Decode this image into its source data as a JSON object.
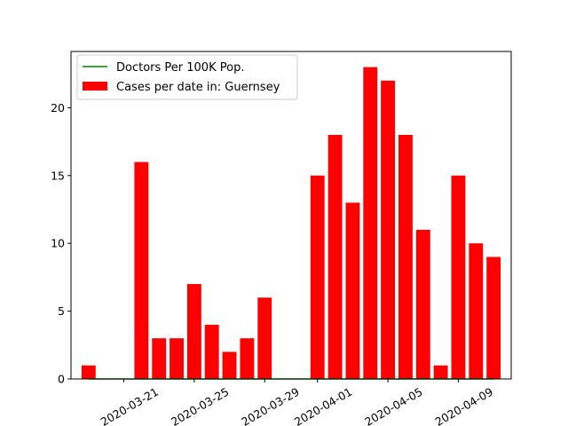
{
  "chart_data": {
    "type": "bar",
    "title": "",
    "xlabel": "",
    "ylabel": "",
    "x": [
      "2020-03-20",
      "2020-03-21",
      "2020-03-22",
      "2020-03-23",
      "2020-03-24",
      "2020-03-25",
      "2020-03-26",
      "2020-03-27",
      "2020-03-28",
      "2020-03-29",
      "2020-03-30",
      "2020-03-31",
      "2020-04-01",
      "2020-04-02",
      "2020-04-03",
      "2020-04-04",
      "2020-04-05",
      "2020-04-06",
      "2020-04-07",
      "2020-04-08",
      "2020-04-09",
      "2020-04-10",
      "2020-04-11",
      "2020-04-12"
    ],
    "series": [
      {
        "name": "Cases per date in: Guernsey",
        "kind": "bar",
        "color": "#ff0000",
        "x": [
          "2020-03-19",
          "2020-03-22",
          "2020-03-23",
          "2020-03-24",
          "2020-03-25",
          "2020-03-26",
          "2020-03-27",
          "2020-03-28",
          "2020-03-29",
          "2020-03-30",
          "2020-04-01",
          "2020-04-02",
          "2020-04-03",
          "2020-04-04",
          "2020-04-05",
          "2020-04-06",
          "2020-04-07",
          "2020-04-08",
          "2020-04-09",
          "2020-04-10",
          "2020-04-11"
        ],
        "values": [
          1,
          16,
          3,
          3,
          7,
          4,
          2,
          3,
          6,
          0,
          15,
          18,
          13,
          23,
          22,
          18,
          11,
          1,
          15,
          10,
          9
        ]
      },
      {
        "name": "Doctors Per 100K Pop.",
        "kind": "line",
        "color": "#008000",
        "x": [
          "2020-03-19",
          "2020-04-11"
        ],
        "values": [
          0,
          0
        ]
      }
    ],
    "xticks": [
      "2020-03-21",
      "2020-03-25",
      "2020-03-29",
      "2020-04-01",
      "2020-04-05",
      "2020-04-09"
    ],
    "yticks": [
      0,
      5,
      10,
      15,
      20
    ],
    "ylim": [
      0,
      24.15
    ],
    "xlim": [
      "2020-03-18",
      "2020-04-12"
    ],
    "legend_position": "upper-left",
    "grid": false
  }
}
